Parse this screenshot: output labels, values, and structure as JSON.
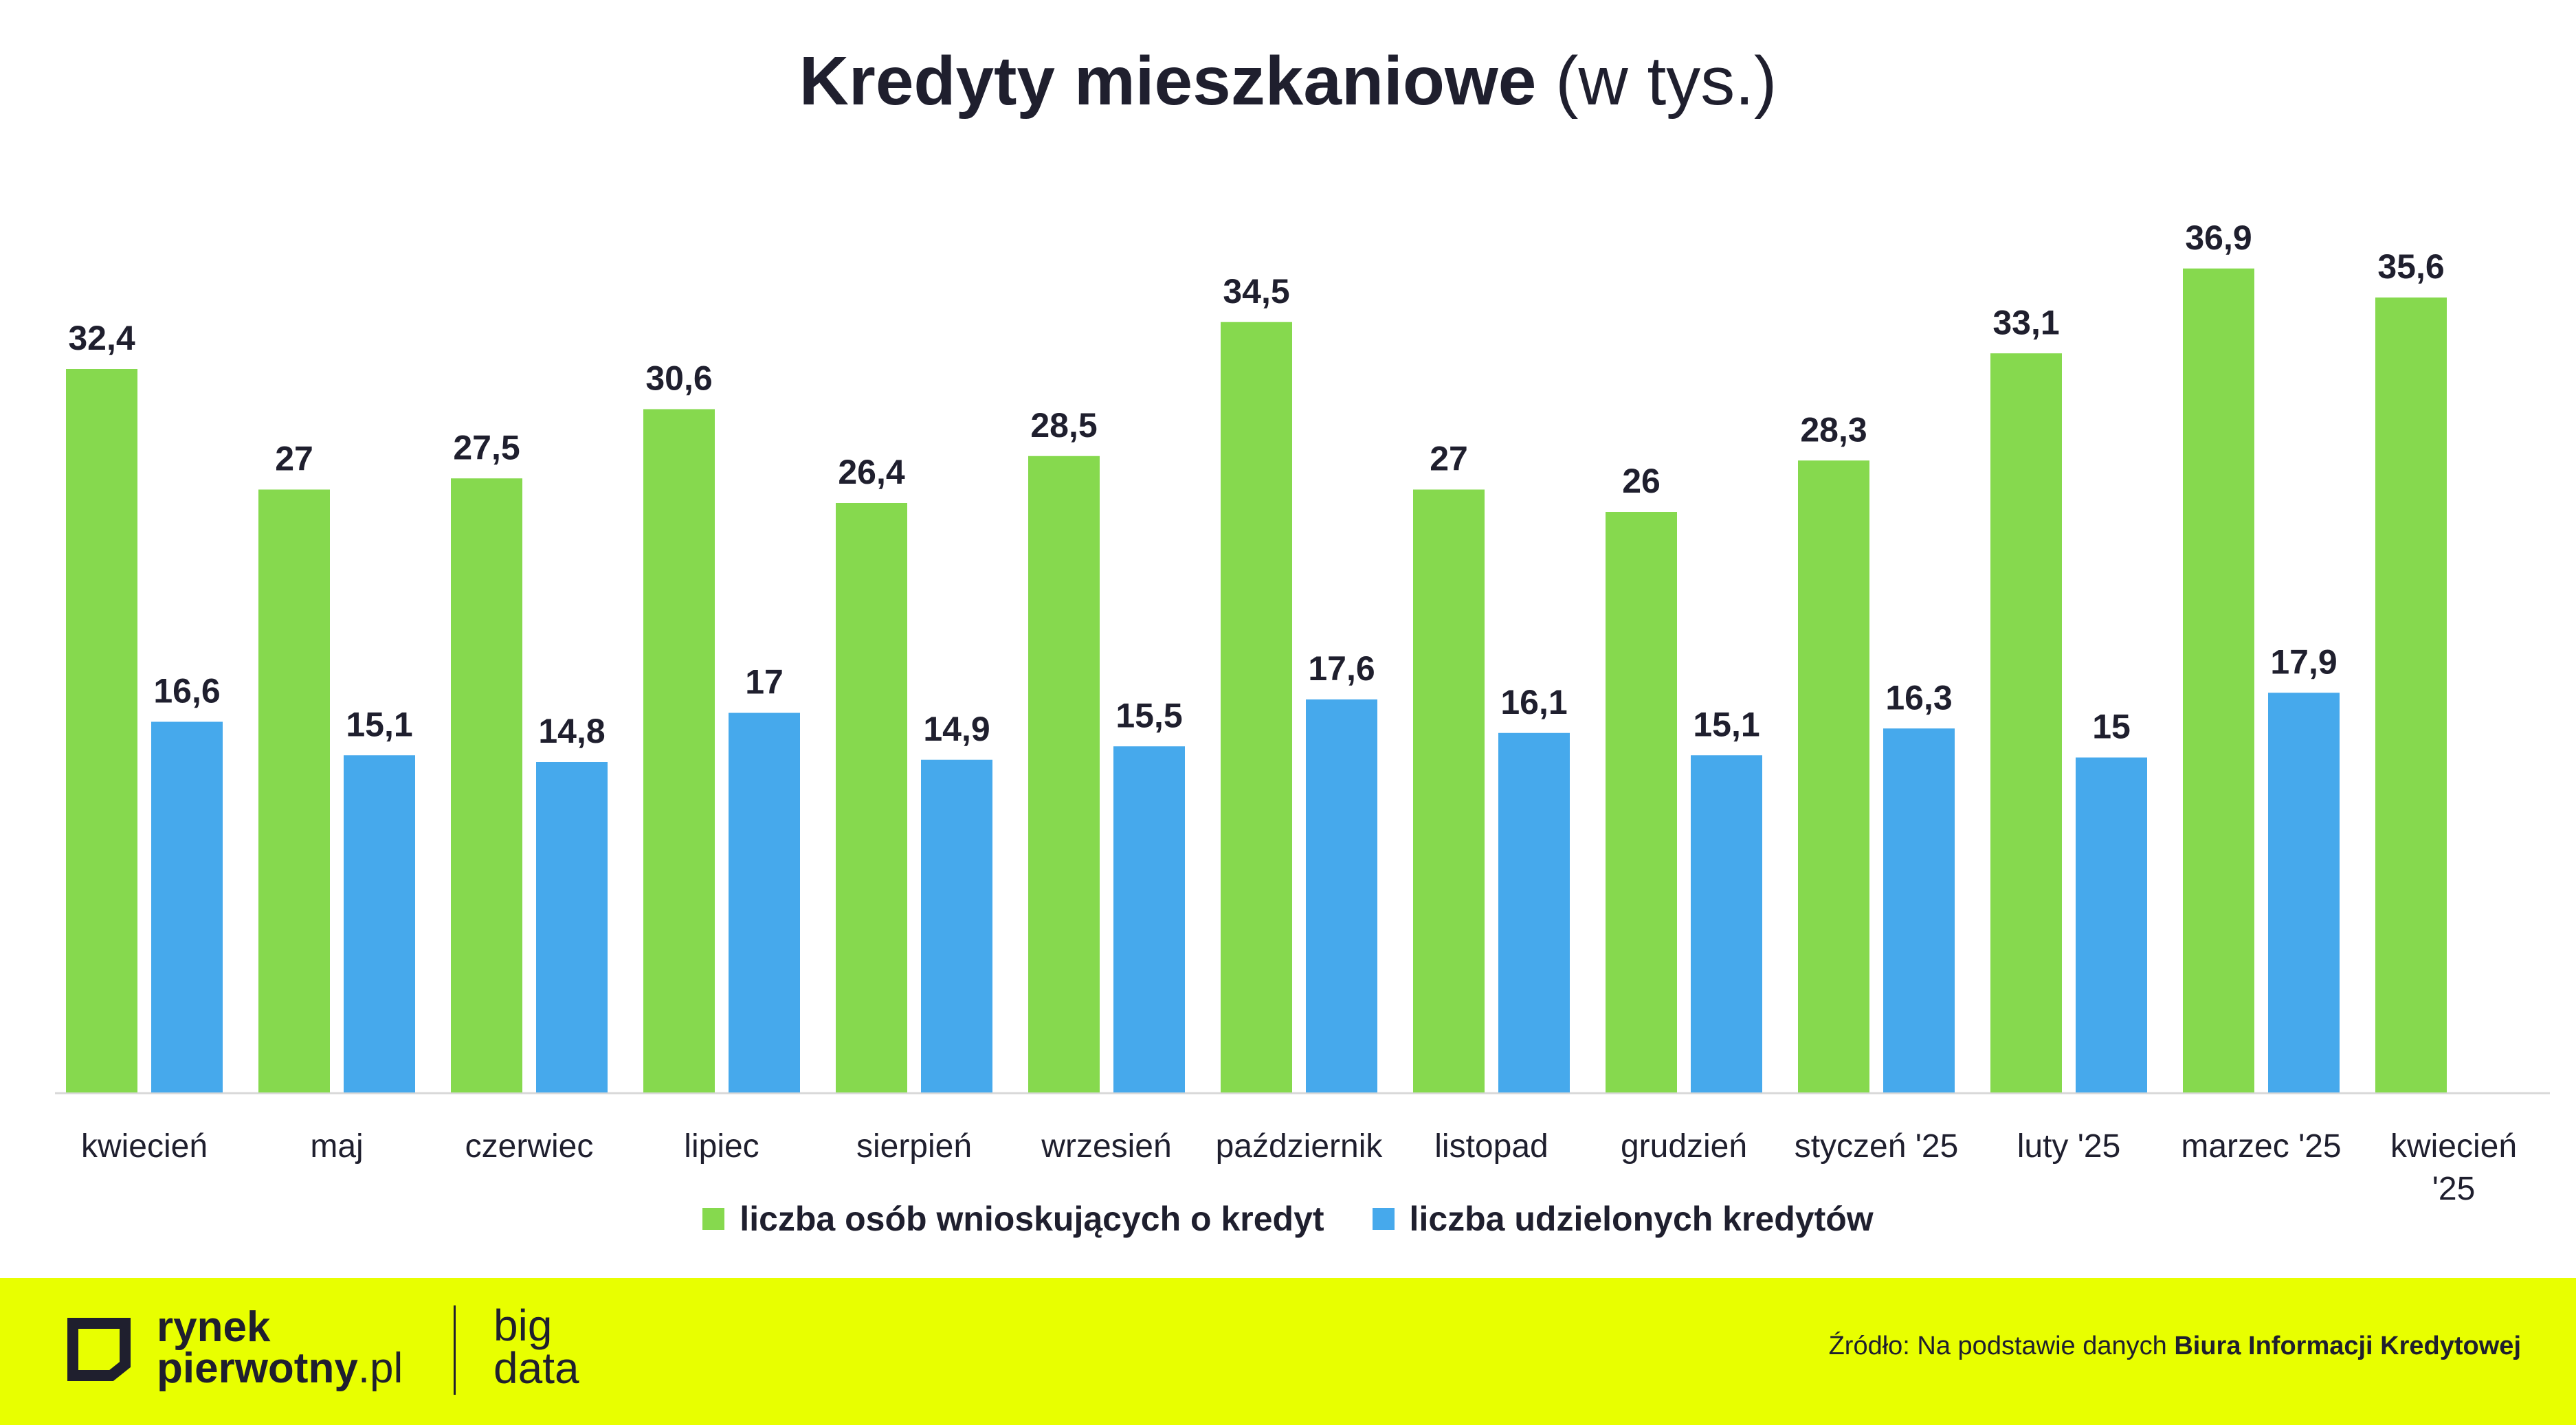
{
  "title": {
    "bold": "Kredyty mieszkaniowe",
    "normal": "(w tys.)"
  },
  "chart_data": {
    "type": "bar",
    "title": "Kredyty mieszkaniowe (w tys.)",
    "categories": [
      [
        "kwiecień"
      ],
      [
        "maj"
      ],
      [
        "czerwiec"
      ],
      [
        "lipiec"
      ],
      [
        "sierpień"
      ],
      [
        "wrzesień"
      ],
      [
        "październik"
      ],
      [
        "listopad"
      ],
      [
        "grudzień"
      ],
      [
        "styczeń '25"
      ],
      [
        "luty '25"
      ],
      [
        "marzec '25"
      ],
      [
        "kwiecień",
        "'25"
      ]
    ],
    "series": [
      {
        "name": "liczba osób wnioskujących o kredyt",
        "color": "#86d94e",
        "values": [
          32.4,
          27,
          27.5,
          30.6,
          26.4,
          28.5,
          34.5,
          27,
          26,
          28.3,
          33.1,
          36.9,
          35.6
        ],
        "labels": [
          "32,4",
          "27",
          "27,5",
          "30,6",
          "26,4",
          "28,5",
          "34,5",
          "27",
          "26",
          "28,3",
          "33,1",
          "36,9",
          "35,6"
        ]
      },
      {
        "name": "liczba udzielonych kredytów",
        "color": "#46a9ec",
        "values": [
          16.6,
          15.1,
          14.8,
          17,
          14.9,
          15.5,
          17.6,
          16.1,
          15.1,
          16.3,
          15,
          17.9,
          null
        ],
        "labels": [
          "16,6",
          "15,1",
          "14,8",
          "17",
          "14,9",
          "15,5",
          "17,6",
          "16,1",
          "15,1",
          "16,3",
          "15",
          "17,9",
          ""
        ]
      }
    ],
    "ylim": [
      0,
      40
    ],
    "grid": false,
    "legend_position": "bottom-center"
  },
  "footer": {
    "brand_line1": "rynek",
    "brand_line2": "pierwotny",
    "brand_suffix": ".pl",
    "bigdata_line1": "big",
    "bigdata_line2": "data",
    "source_prefix": "Źródło: Na podstawie danych ",
    "source_bold": "Biura Informacji Kredytowej"
  },
  "colors": {
    "footer_bg": "#e8ff00",
    "text": "#1f1f2e"
  }
}
